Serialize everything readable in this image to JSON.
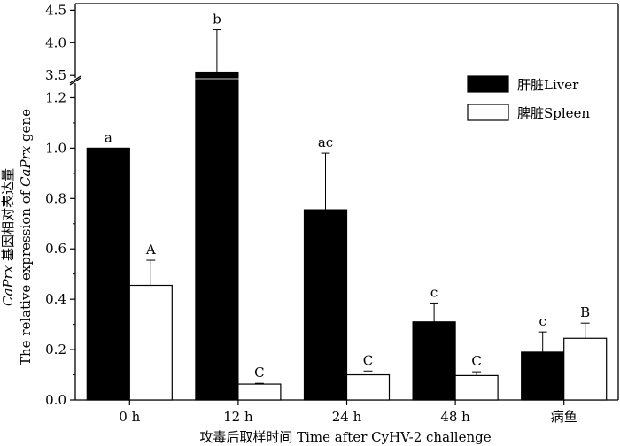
{
  "chart_data": {
    "type": "bar",
    "title": "",
    "xlabel": "攻毒后取样时间 Time after CyHV-2 challenge",
    "ylabel": {
      "line1_italic": "CaPrx",
      "line1_rest": " 基因相对表达量",
      "line2_pre": "The relative expression of ",
      "line2_italic": "CaPrx",
      "line2_post": " gene"
    },
    "categories": [
      "0 h",
      "12 h",
      "24 h",
      "48 h",
      "病鱼"
    ],
    "axis_break": {
      "lower_range": [
        0,
        1.3
      ],
      "upper_range": [
        3.3,
        4.6
      ],
      "lower_ticks": [
        "0.0",
        "0.2",
        "0.4",
        "0.6",
        "0.8",
        "1.0",
        "1.2"
      ],
      "upper_ticks": [
        "3.5",
        "4.0",
        "4.5"
      ]
    },
    "grid": false,
    "legend_position": "top-right",
    "series": [
      {
        "name": "肝脏Liver",
        "color": "#000000",
        "values": [
          1.0,
          3.55,
          0.755,
          0.31,
          0.19
        ],
        "errors": [
          0.0,
          0.65,
          0.225,
          0.075,
          0.08
        ],
        "labels": [
          "a",
          "b",
          "ac",
          "c",
          "c"
        ]
      },
      {
        "name": "脾脏Spleen",
        "color": "#ffffff",
        "values": [
          0.455,
          0.063,
          0.1,
          0.097,
          0.245
        ],
        "errors": [
          0.1,
          0.003,
          0.015,
          0.015,
          0.06
        ],
        "labels": [
          "A",
          "C",
          "C",
          "C",
          "B"
        ]
      }
    ]
  }
}
